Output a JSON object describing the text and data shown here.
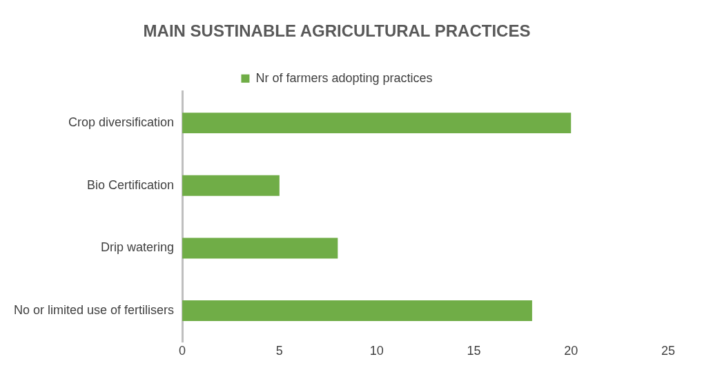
{
  "chart_data": {
    "type": "bar",
    "orientation": "horizontal",
    "title": "MAIN SUSTINABLE AGRICULTURAL PRACTICES",
    "categories": [
      "Crop diversification",
      "Bio Certification",
      "Drip watering",
      "No or limited use of fertilisers"
    ],
    "series": [
      {
        "name": "Nr of farmers adopting practices",
        "color": "#70ad47",
        "values": [
          20,
          5,
          8,
          18
        ]
      }
    ],
    "xlim": [
      0,
      25
    ],
    "xticks": [
      0,
      5,
      10,
      15,
      20,
      25
    ],
    "grid": false,
    "legend": "top"
  }
}
